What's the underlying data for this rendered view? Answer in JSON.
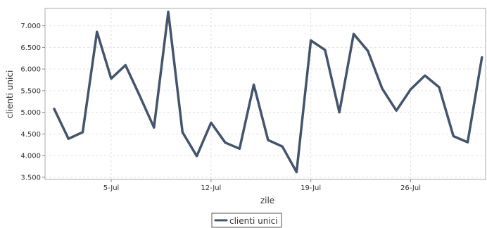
{
  "chart_data": {
    "type": "line",
    "xlabel": "zile",
    "ylabel": "clienti unici",
    "x_start_label": "1-Jul",
    "x": [
      "1-Jul",
      "2-Jul",
      "3-Jul",
      "4-Jul",
      "5-Jul",
      "6-Jul",
      "7-Jul",
      "8-Jul",
      "9-Jul",
      "10-Jul",
      "11-Jul",
      "12-Jul",
      "13-Jul",
      "14-Jul",
      "15-Jul",
      "16-Jul",
      "17-Jul",
      "18-Jul",
      "19-Jul",
      "20-Jul",
      "21-Jul",
      "22-Jul",
      "23-Jul",
      "24-Jul",
      "25-Jul",
      "26-Jul",
      "27-Jul",
      "28-Jul",
      "29-Jul",
      "30-Jul",
      "31-Jul"
    ],
    "xticks": [
      "5-Jul",
      "12-Jul",
      "19-Jul",
      "26-Jul"
    ],
    "yticks": [
      "3.500",
      "4.000",
      "4.500",
      "5.000",
      "5.500",
      "6.000",
      "6.500",
      "7.000"
    ],
    "ylim": [
      3450,
      7400
    ],
    "grid": true,
    "legend_position": "bottom",
    "line_color": "#44546a",
    "series": [
      {
        "name": "clienti unici",
        "values": [
          5080,
          4390,
          4540,
          6860,
          5780,
          6090,
          5380,
          4650,
          7320,
          4540,
          3990,
          4760,
          4300,
          4160,
          5640,
          4360,
          4210,
          3620,
          6660,
          6440,
          5000,
          6810,
          6420,
          5550,
          5040,
          5530,
          5850,
          5580,
          4450,
          4310,
          6270
        ]
      }
    ]
  }
}
